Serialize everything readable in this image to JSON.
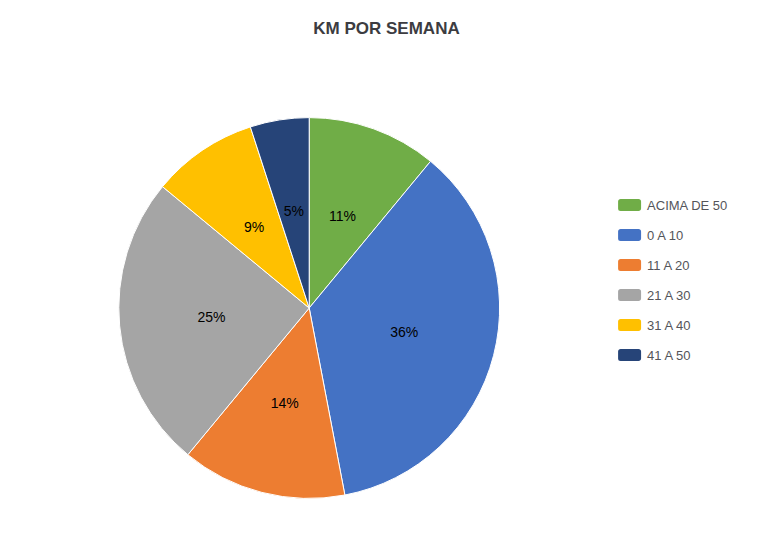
{
  "chart_data": {
    "type": "pie",
    "title": "KM POR SEMANA",
    "categories": [
      "ACIMA DE 50",
      "0 A 10",
      "11 A 20",
      "21 A 30",
      "31 A 40",
      "41 A 50"
    ],
    "values": [
      11,
      36,
      14,
      25,
      9,
      5
    ],
    "value_labels": [
      "11%",
      "36%",
      "14%",
      "25%",
      "9%",
      "5%"
    ],
    "colors": [
      "#70AD47",
      "#4472C4",
      "#ED7D31",
      "#A5A5A5",
      "#FFC000",
      "#264478"
    ],
    "data_labels": true,
    "legend": "right"
  }
}
